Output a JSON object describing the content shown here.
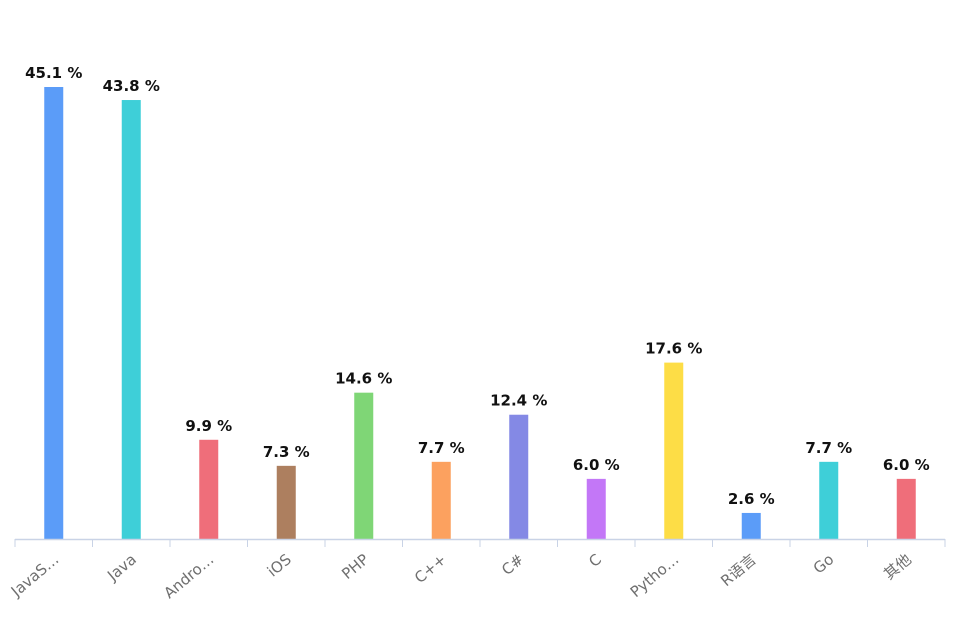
{
  "chart_data": {
    "type": "bar",
    "categories": [
      "JavaS…",
      "Java",
      "Andro…",
      "iOS",
      "PHP",
      "C++",
      "C#",
      "C",
      "Pytho…",
      "R语言",
      "Go",
      "其他"
    ],
    "values": [
      45.1,
      43.8,
      9.9,
      7.3,
      14.6,
      7.7,
      12.4,
      6.0,
      17.6,
      2.6,
      7.7,
      6.0
    ],
    "value_labels": [
      "45.1 %",
      "43.8 %",
      "9.9 %",
      "7.3 %",
      "14.6 %",
      "7.7 %",
      "12.4 %",
      "6.0 %",
      "17.6 %",
      "2.6 %",
      "7.7 %",
      "6.0 %"
    ],
    "unit": "%",
    "colors": [
      "#5b9cf8",
      "#3ecfd8",
      "#ef6e7a",
      "#ad7f5f",
      "#7fd676",
      "#fca15f",
      "#8489e5",
      "#c377f7",
      "#fddd46",
      "#5b9cf8",
      "#3ecfd8",
      "#ef6e7a"
    ],
    "title": "",
    "xlabel": "",
    "ylabel": "",
    "ylim": [
      0,
      45.1
    ],
    "grid": false,
    "legend": "none"
  }
}
